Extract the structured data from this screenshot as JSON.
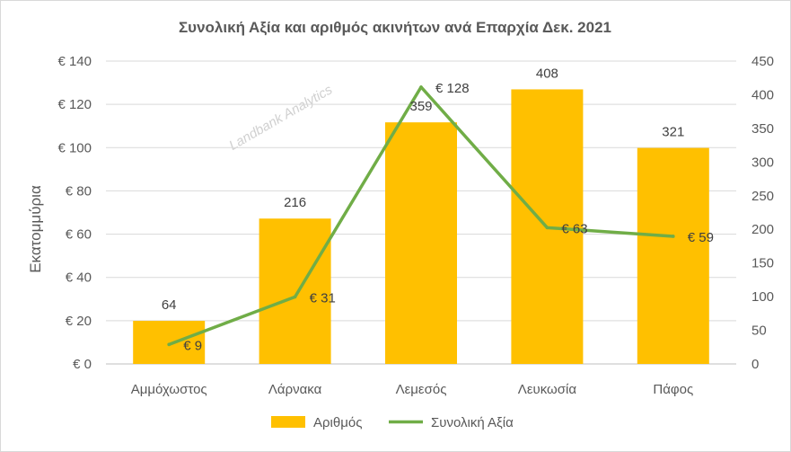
{
  "chart_data": {
    "type": "bar",
    "title": "Συνολική Αξία και αριθμός ακινήτων ανά Επαρχία Δεκ. 2021",
    "watermark": "Landbank Analytics",
    "categories": [
      "Αμμόχωστος",
      "Λάρνακα",
      "Λεμεσός",
      "Λευκωσία",
      "Πάφος"
    ],
    "series": [
      {
        "name": "Αριθμός",
        "type": "bar",
        "axis": "right",
        "color": "#FFC000",
        "values": [
          64,
          216,
          359,
          408,
          321
        ],
        "labels": [
          "64",
          "216",
          "359",
          "408",
          "321"
        ]
      },
      {
        "name": "Συνολική Αξία",
        "type": "line",
        "axis": "left",
        "color": "#70AD47",
        "values": [
          9,
          31,
          128,
          63,
          59
        ],
        "labels": [
          "€ 9",
          "€ 31",
          "€ 128",
          "€ 63",
          "€ 59"
        ]
      }
    ],
    "ylabel": "Εκατομμύρια",
    "ylim": [
      0,
      140
    ],
    "yticks": [
      "€ 0",
      "€ 20",
      "€ 40",
      "€ 60",
      "€ 80",
      "€ 100",
      "€ 120",
      "€ 140"
    ],
    "y2lim": [
      0,
      450
    ],
    "y2ticks": [
      "0",
      "50",
      "100",
      "150",
      "200",
      "250",
      "300",
      "350",
      "400",
      "450"
    ],
    "grid": true,
    "legend": "bottom"
  }
}
